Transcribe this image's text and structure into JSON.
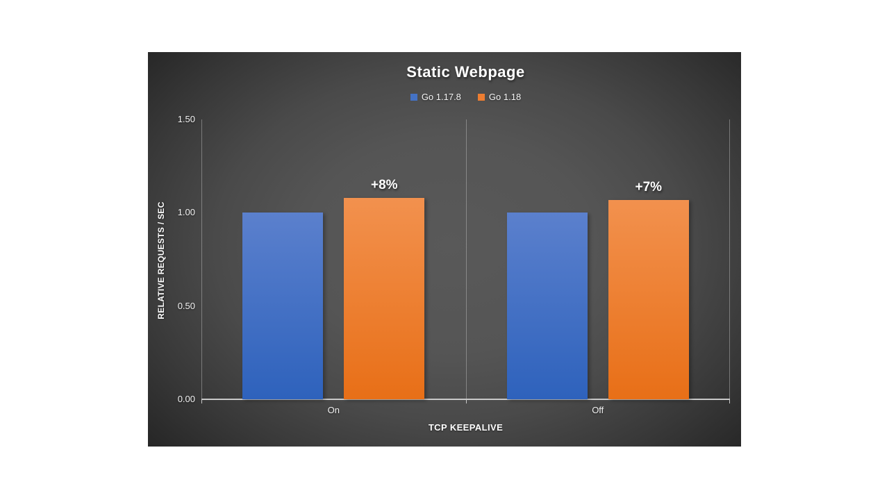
{
  "page": {
    "background": "#ffffff"
  },
  "slide": {
    "background_center": "#595959",
    "background_edge": "#232323"
  },
  "chart_data": {
    "type": "bar",
    "title": "Static Webpage",
    "categories": [
      "On",
      "Off"
    ],
    "series": [
      {
        "name": "Go 1.17.8",
        "values": [
          1.0,
          1.0
        ],
        "color": "#4472C4",
        "gradient_top": "#5b80cd",
        "gradient_bottom": "#2e62bc"
      },
      {
        "name": "Go 1.18",
        "values": [
          1.08,
          1.07
        ],
        "color": "#ED7D31",
        "gradient_top": "#f2914e",
        "gradient_bottom": "#e86f17"
      }
    ],
    "annotations": [
      {
        "category": "On",
        "series": "Go 1.18",
        "text": "+8%"
      },
      {
        "category": "Off",
        "series": "Go 1.18",
        "text": "+7%"
      }
    ],
    "xlabel": "TCP KEEPALIVE",
    "ylabel": "RELATIVE REQUESTS / SEC",
    "ylim": [
      0,
      1.5
    ],
    "yticks": [
      {
        "value": 0.0,
        "label": "0.00"
      },
      {
        "value": 0.5,
        "label": "0.50"
      },
      {
        "value": 1.0,
        "label": "1.00"
      },
      {
        "value": 1.5,
        "label": "1.50"
      }
    ],
    "legend_position": "top-center",
    "grid": "vertical-category-boundaries",
    "text_color": "#ffffff",
    "axis_line_color": "#c9c9c9",
    "gridline_color": "#c8c8c8"
  }
}
